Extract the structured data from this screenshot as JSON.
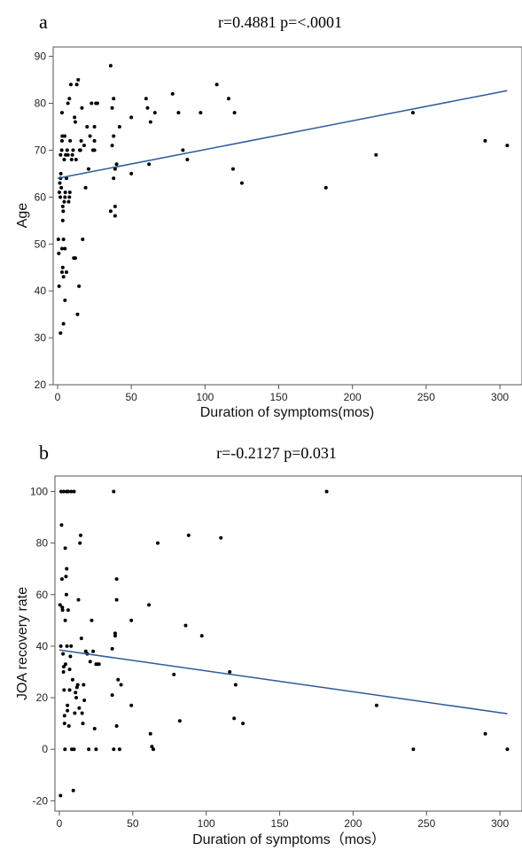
{
  "chart_data": [
    {
      "type": "scatter",
      "panel": "a",
      "title": "r=0.4881 p=<.0001",
      "xlabel": "Duration of symptoms(mos)",
      "ylabel": "Age",
      "xlim": [
        -3,
        315
      ],
      "ylim": [
        20,
        92
      ],
      "xticks": [
        0,
        50,
        100,
        150,
        200,
        250,
        300
      ],
      "yticks": [
        20,
        30,
        40,
        50,
        60,
        70,
        80,
        90
      ],
      "fit_line": {
        "x": [
          0,
          305
        ],
        "y": [
          64,
          82.7
        ]
      },
      "grid": false,
      "series": [
        {
          "points": [
            [
              0.5,
              51
            ],
            [
              0.8,
              48
            ],
            [
              1,
              41
            ],
            [
              1.2,
              61
            ],
            [
              1.5,
              63
            ],
            [
              1.8,
              60
            ],
            [
              2,
              64
            ],
            [
              2,
              69
            ],
            [
              2.2,
              65
            ],
            [
              2.5,
              62
            ],
            [
              2.8,
              70
            ],
            [
              3,
              72
            ],
            [
              3,
              78
            ],
            [
              3.2,
              73
            ],
            [
              3.5,
              55
            ],
            [
              3.5,
              58
            ],
            [
              3.8,
              57
            ],
            [
              2,
              31
            ],
            [
              3,
              49
            ],
            [
              3,
              44
            ],
            [
              3.5,
              45
            ],
            [
              4,
              43
            ],
            [
              4,
              51
            ],
            [
              4,
              33
            ],
            [
              4.5,
              59
            ],
            [
              4.5,
              68
            ],
            [
              4.8,
              73
            ],
            [
              5,
              38
            ],
            [
              5,
              60
            ],
            [
              5,
              49
            ],
            [
              5.2,
              61
            ],
            [
              5.5,
              69
            ],
            [
              6,
              44
            ],
            [
              6,
              64
            ],
            [
              6.5,
              70
            ],
            [
              7,
              80
            ],
            [
              7,
              69
            ],
            [
              7.5,
              59
            ],
            [
              8,
              81
            ],
            [
              8,
              60
            ],
            [
              8.3,
              61
            ],
            [
              8.5,
              72
            ],
            [
              9,
              84
            ],
            [
              9.5,
              68
            ],
            [
              10,
              69
            ],
            [
              10.5,
              70
            ],
            [
              11,
              47
            ],
            [
              11.5,
              77
            ],
            [
              12,
              76
            ],
            [
              12,
              47
            ],
            [
              12.5,
              68
            ],
            [
              13,
              84
            ],
            [
              13.5,
              35
            ],
            [
              14,
              85
            ],
            [
              14.5,
              41
            ],
            [
              15,
              70
            ],
            [
              15.5,
              70
            ],
            [
              16,
              72
            ],
            [
              16.5,
              79
            ],
            [
              17,
              51
            ],
            [
              18,
              71
            ],
            [
              19,
              62
            ],
            [
              20,
              75
            ],
            [
              21,
              66
            ],
            [
              22,
              73
            ],
            [
              23,
              80
            ],
            [
              24,
              70
            ],
            [
              25,
              70
            ],
            [
              25,
              72
            ],
            [
              25,
              75
            ],
            [
              26,
              80
            ],
            [
              27,
              80
            ],
            [
              36,
              57
            ],
            [
              36,
              88
            ],
            [
              37,
              71
            ],
            [
              37,
              79
            ],
            [
              38,
              73
            ],
            [
              38,
              64
            ],
            [
              38,
              81
            ],
            [
              39,
              66
            ],
            [
              39,
              56
            ],
            [
              39,
              58
            ],
            [
              40,
              67
            ],
            [
              42,
              75
            ],
            [
              50,
              77
            ],
            [
              50,
              65
            ],
            [
              60,
              81
            ],
            [
              61,
              79
            ],
            [
              62,
              67
            ],
            [
              63,
              76
            ],
            [
              66,
              78
            ],
            [
              78,
              82
            ],
            [
              82,
              78
            ],
            [
              85,
              70
            ],
            [
              88,
              68
            ],
            [
              97,
              78
            ],
            [
              108,
              84
            ],
            [
              116,
              81
            ],
            [
              119,
              66
            ],
            [
              120,
              78
            ],
            [
              125,
              63
            ],
            [
              182,
              62
            ],
            [
              216,
              69
            ],
            [
              241,
              78
            ],
            [
              290,
              72
            ],
            [
              305,
              71
            ]
          ]
        }
      ]
    },
    {
      "type": "scatter",
      "panel": "b",
      "title": "r=-0.2127 p=0.031",
      "xlabel": "Duration of symptoms（mos）",
      "ylabel": "JOA recovery rate",
      "xlim": [
        -3,
        315
      ],
      "ylim": [
        -24,
        106
      ],
      "xticks": [
        0,
        50,
        100,
        150,
        200,
        250,
        300
      ],
      "yticks": [
        -20,
        0,
        20,
        40,
        60,
        80,
        100
      ],
      "fit_line": {
        "x": [
          0,
          305
        ],
        "y": [
          38.5,
          13.8
        ]
      },
      "grid": false,
      "series": [
        {
          "points": [
            [
              0.5,
              56
            ],
            [
              0.8,
              -18
            ],
            [
              1,
              40
            ],
            [
              1.2,
              100
            ],
            [
              1.5,
              87
            ],
            [
              1.8,
              66
            ],
            [
              2,
              55
            ],
            [
              2.2,
              54
            ],
            [
              2.5,
              37
            ],
            [
              2.8,
              30
            ],
            [
              3,
              100
            ],
            [
              3,
              32
            ],
            [
              3.2,
              23
            ],
            [
              3.5,
              13
            ],
            [
              3.5,
              10
            ],
            [
              3.8,
              0
            ],
            [
              4,
              78
            ],
            [
              4,
              50
            ],
            [
              4.2,
              33
            ],
            [
              4.5,
              67
            ],
            [
              4.8,
              60
            ],
            [
              5,
              100
            ],
            [
              5,
              70
            ],
            [
              5.2,
              40
            ],
            [
              5.5,
              17
            ],
            [
              5.5,
              15
            ],
            [
              6,
              100
            ],
            [
              6,
              54
            ],
            [
              6.5,
              9
            ],
            [
              7,
              23
            ],
            [
              7,
              31
            ],
            [
              7.5,
              36
            ],
            [
              8,
              100
            ],
            [
              8,
              40
            ],
            [
              8.5,
              0
            ],
            [
              9,
              27
            ],
            [
              9.5,
              -16
            ],
            [
              10,
              100
            ],
            [
              10,
              0
            ],
            [
              10.5,
              14
            ],
            [
              11,
              22
            ],
            [
              11.5,
              20
            ],
            [
              12,
              24
            ],
            [
              12.5,
              25
            ],
            [
              13,
              58
            ],
            [
              13.5,
              16
            ],
            [
              14,
              80
            ],
            [
              14.5,
              83
            ],
            [
              15,
              43
            ],
            [
              15.5,
              14
            ],
            [
              16,
              10
            ],
            [
              16.5,
              25
            ],
            [
              17,
              19
            ],
            [
              18,
              38
            ],
            [
              19,
              37
            ],
            [
              20,
              0
            ],
            [
              21,
              34
            ],
            [
              22,
              50
            ],
            [
              23,
              38
            ],
            [
              24,
              8
            ],
            [
              25,
              0
            ],
            [
              25,
              33
            ],
            [
              26,
              33
            ],
            [
              27,
              33
            ],
            [
              36,
              21
            ],
            [
              36,
              39
            ],
            [
              37,
              100
            ],
            [
              37,
              0
            ],
            [
              38,
              44
            ],
            [
              38,
              45
            ],
            [
              39,
              9
            ],
            [
              39,
              66
            ],
            [
              39,
              58
            ],
            [
              40,
              27
            ],
            [
              41,
              0
            ],
            [
              42,
              25
            ],
            [
              49,
              50
            ],
            [
              49,
              17
            ],
            [
              61,
              56
            ],
            [
              62,
              6
            ],
            [
              63,
              1
            ],
            [
              64,
              0
            ],
            [
              67,
              80
            ],
            [
              78,
              29
            ],
            [
              82,
              11
            ],
            [
              86,
              48
            ],
            [
              88,
              83
            ],
            [
              97,
              44
            ],
            [
              110,
              82
            ],
            [
              116,
              30
            ],
            [
              119,
              12
            ],
            [
              120,
              25
            ],
            [
              125,
              10
            ],
            [
              182,
              100
            ],
            [
              216,
              17
            ],
            [
              241,
              0
            ],
            [
              290,
              6
            ],
            [
              305,
              0
            ]
          ]
        }
      ]
    }
  ]
}
